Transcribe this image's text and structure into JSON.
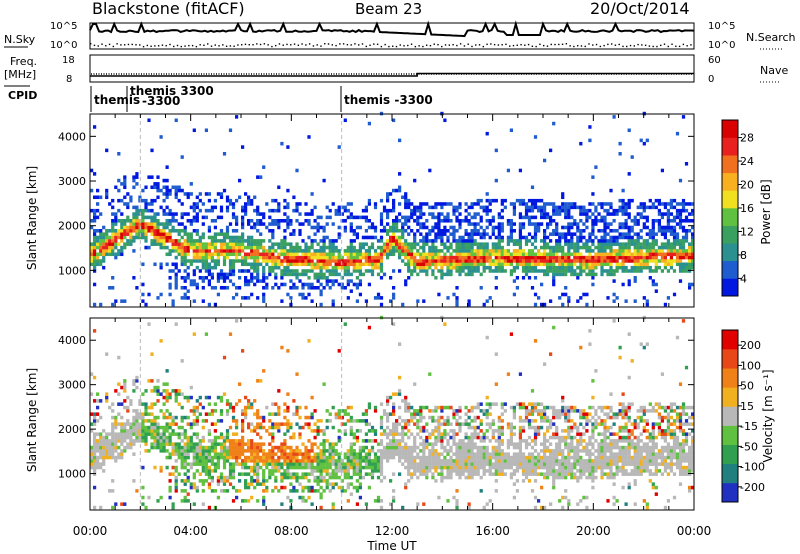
{
  "header": {
    "station": "Blackstone (fitACF)",
    "beam": "Beam 23",
    "date": "20/Oct/2014"
  },
  "noise_panel": {
    "left_label": "N.Sky",
    "right_label": "N.Search",
    "left_ticks": [
      "10^5",
      "10^0"
    ],
    "right_ticks": [
      "10^5",
      "10^0"
    ]
  },
  "freq_panel": {
    "left_label_1": "Freq.",
    "left_label_2": "[MHz]",
    "left_ticks": [
      "18",
      "8"
    ],
    "right_label": "Nave",
    "right_ticks": [
      "60",
      "0"
    ],
    "freq_before_mhz": 10.4,
    "freq_after_mhz": 11.4,
    "freq_switch_hour": 13.0
  },
  "cpid": {
    "label": "CPID",
    "segments": [
      {
        "line1": "themis",
        "line2": ""
      },
      {
        "line1": "themis 3300",
        "line2": "-3300"
      },
      {
        "line1": "themis -3300",
        "line2": ""
      }
    ]
  },
  "colorbars": {
    "power": {
      "title": "Power [dB]",
      "ticks": [
        "28",
        "24",
        "20",
        "16",
        "12",
        "8",
        "4"
      ],
      "colors": [
        "#0018e0",
        "#1e5cd0",
        "#2a9090",
        "#3aa060",
        "#60c040",
        "#f0e020",
        "#f8b020",
        "#f07020",
        "#e82020",
        "#d80000"
      ]
    },
    "velocity": {
      "title": "Velocity [m s⁻¹]",
      "ticks": [
        "200",
        "100",
        "50",
        "15",
        "-15",
        "-50",
        "-100",
        "-200"
      ],
      "colors": [
        "#2030c0",
        "#208080",
        "#30a050",
        "#60c040",
        "#b8b8b8",
        "#f0b020",
        "#f08018",
        "#e84818",
        "#e00000"
      ]
    }
  },
  "chart_data": [
    {
      "type": "heatmap",
      "title": "Power",
      "ylabel": "Slant Range [km]",
      "xlabel": "Time UT",
      "ylim": [
        180,
        4500
      ],
      "xlim": [
        0,
        24
      ],
      "x_tick_labels": [
        "00:00",
        "04:00",
        "08:00",
        "12:00",
        "16:00",
        "20:00",
        "00:00"
      ],
      "y_tick_labels": [
        "1000",
        "2000",
        "3000",
        "4000"
      ],
      "colorbar_range_db": [
        0,
        30
      ],
      "echo_band_center_km": [
        [
          0,
          1300
        ],
        [
          2,
          2000
        ],
        [
          4,
          1400
        ],
        [
          6,
          1400
        ],
        [
          8,
          1200
        ],
        [
          10,
          1150
        ],
        [
          11.5,
          1200
        ],
        [
          12,
          1700
        ],
        [
          13,
          1150
        ],
        [
          16,
          1250
        ],
        [
          20,
          1200
        ],
        [
          24,
          1300
        ]
      ]
    },
    {
      "type": "heatmap",
      "title": "Velocity",
      "ylabel": "Slant Range [km]",
      "xlabel": "Time UT",
      "ylim": [
        180,
        4500
      ],
      "xlim": [
        0,
        24
      ],
      "x_tick_labels": [
        "00:00",
        "04:00",
        "08:00",
        "12:00",
        "16:00",
        "20:00",
        "00:00"
      ],
      "y_tick_labels": [
        "1000",
        "2000",
        "3000",
        "4000"
      ],
      "colorbar_range_ms": [
        -250,
        250
      ]
    }
  ]
}
